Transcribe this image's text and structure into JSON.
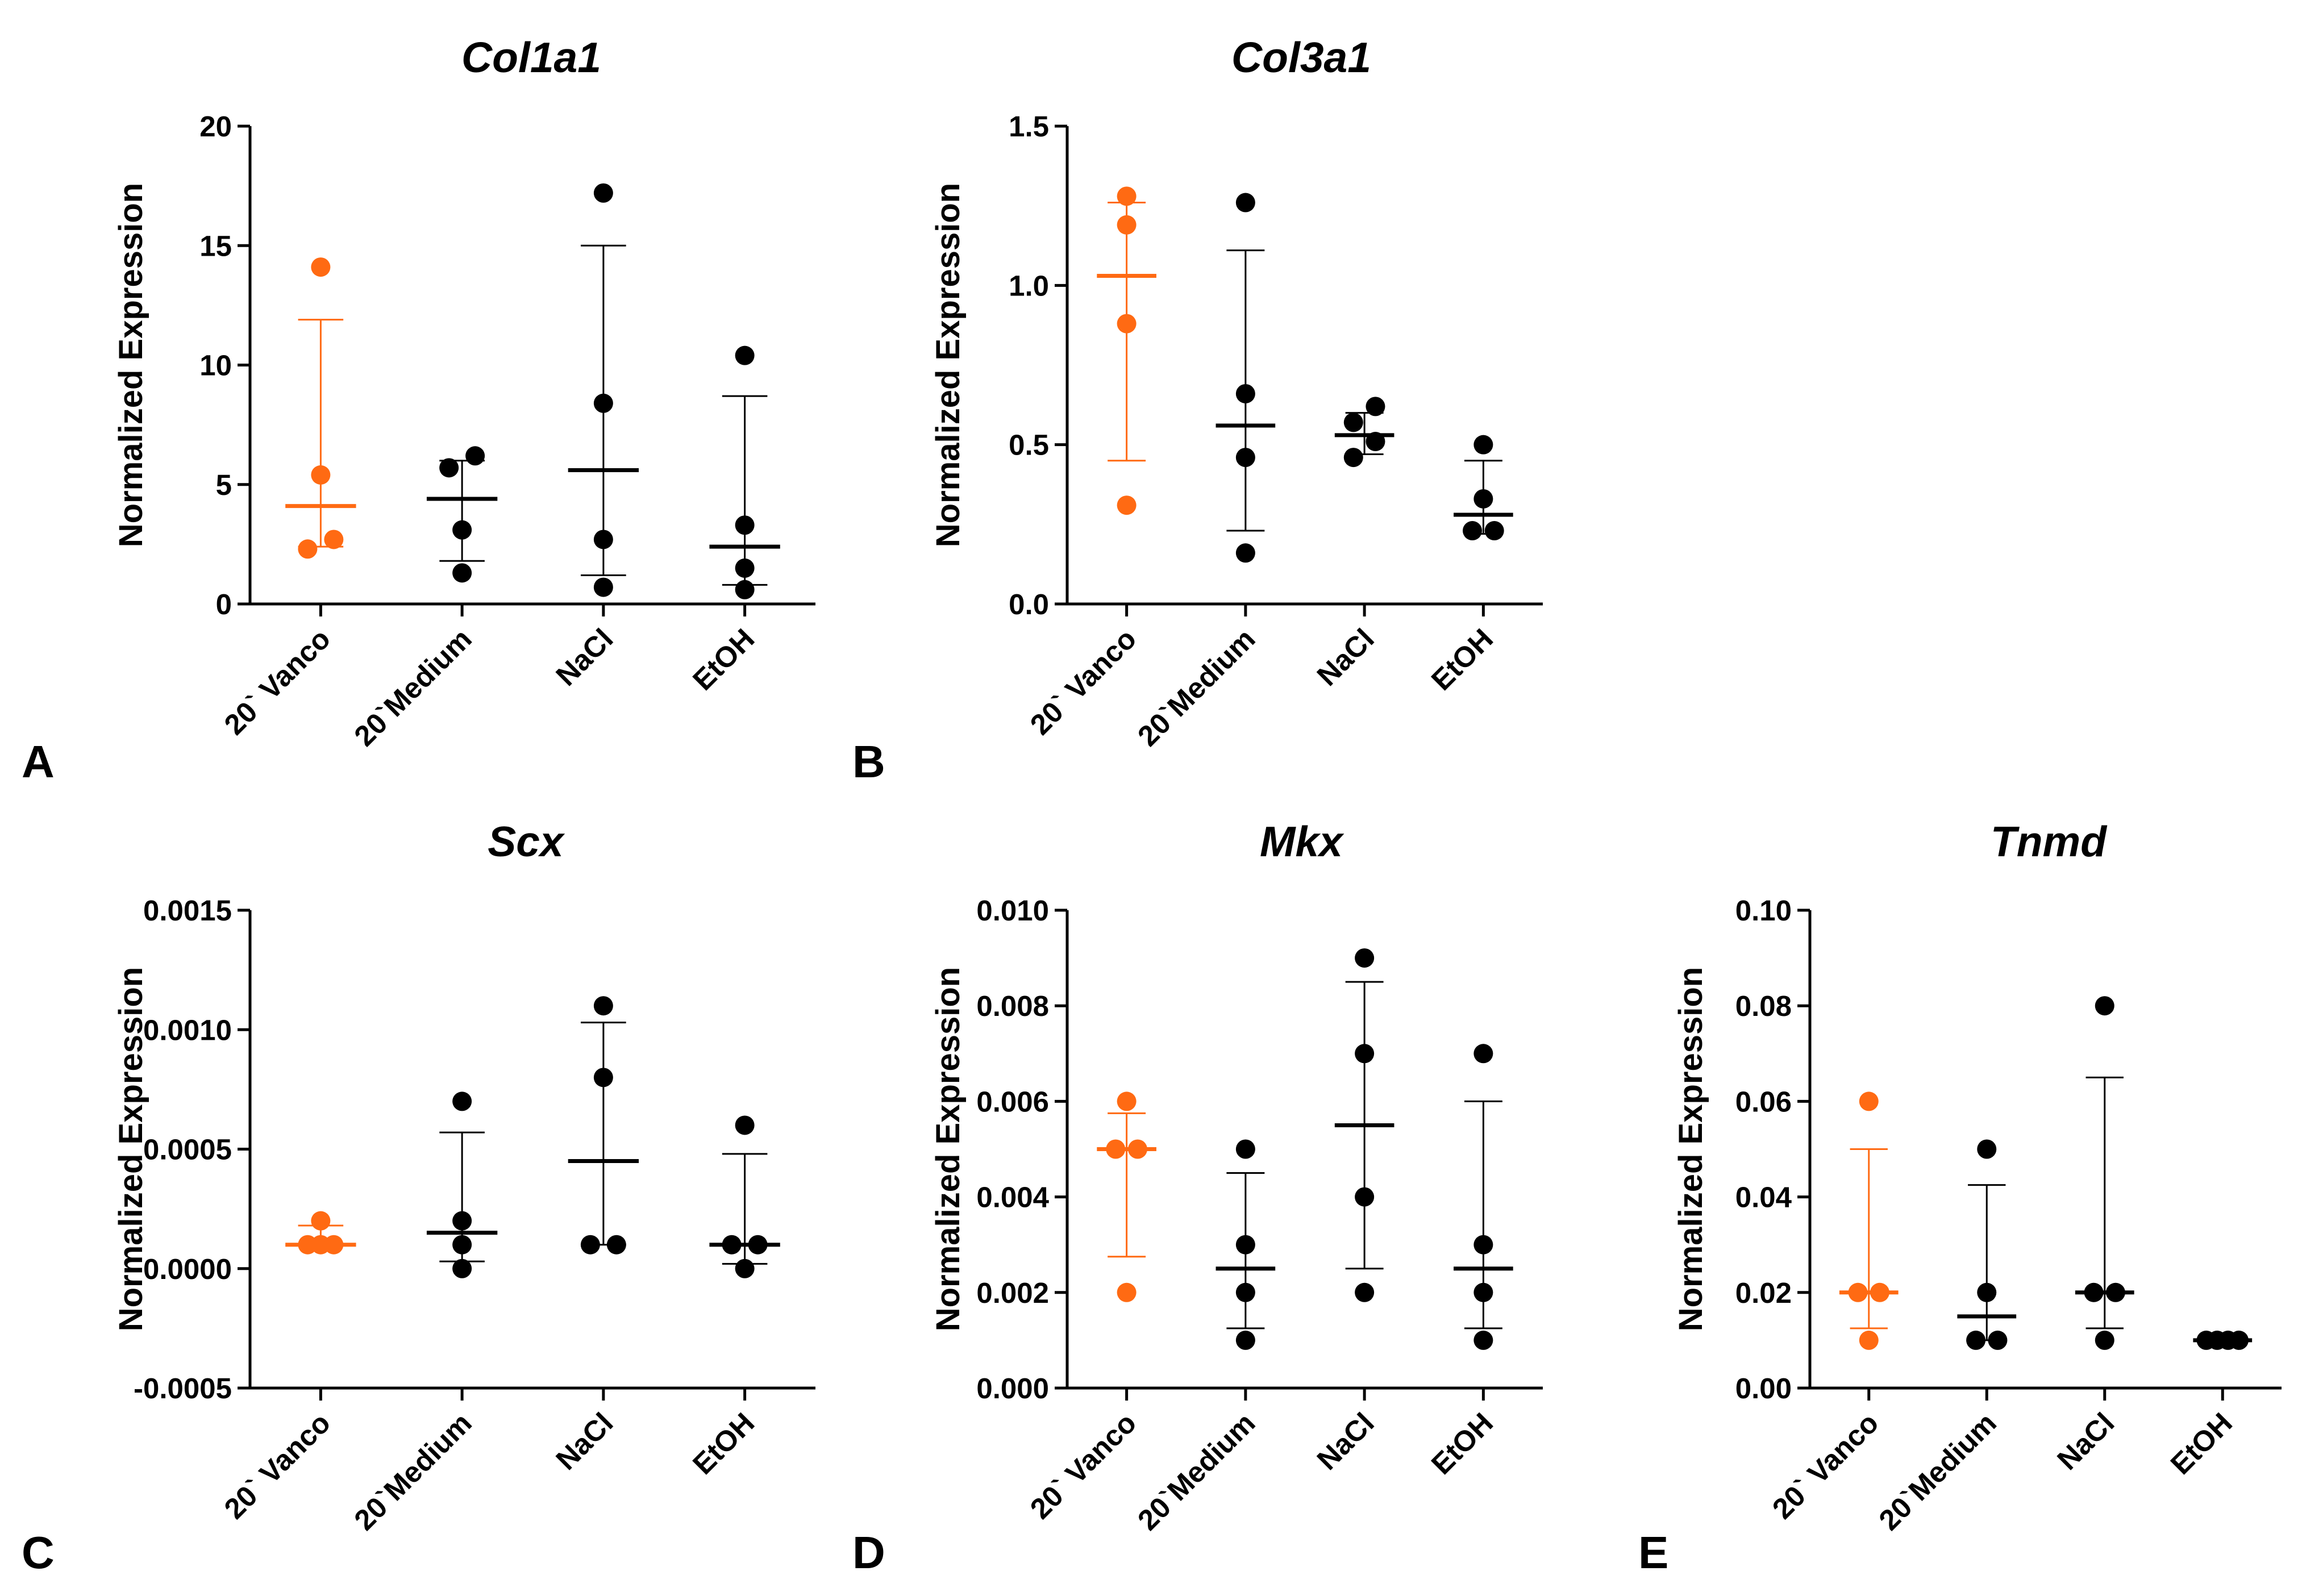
{
  "colors": {
    "highlight": "#ff6a13",
    "default": "#000000"
  },
  "chart_data": [
    {
      "panel": "A",
      "type": "scatter",
      "title": "Col1a1",
      "ylabel": "Normalized Expression",
      "ylim": [
        0,
        20
      ],
      "yticks": [
        "0",
        "5",
        "10",
        "15",
        "20"
      ],
      "ytick_values": [
        0,
        5,
        10,
        15,
        20
      ],
      "categories": [
        "20` Vanco",
        "20`Medium",
        "NaCl",
        "EtOH"
      ],
      "series": [
        {
          "name": "20` Vanco",
          "points": [
            [
              -0.22,
              2.3
            ],
            [
              0.22,
              2.7
            ],
            [
              0,
              5.4
            ],
            [
              0,
              14.1
            ]
          ],
          "median": 4.1,
          "err": [
            2.4,
            11.9
          ]
        },
        {
          "name": "20`Medium",
          "points": [
            [
              0,
              1.3
            ],
            [
              0,
              3.1
            ],
            [
              -0.22,
              5.7
            ],
            [
              0.22,
              6.2
            ]
          ],
          "median": 4.4,
          "err": [
            1.8,
            6.0
          ]
        },
        {
          "name": "NaCl",
          "points": [
            [
              0,
              0.7
            ],
            [
              0,
              2.7
            ],
            [
              0,
              8.4
            ],
            [
              0,
              17.2
            ]
          ],
          "median": 5.6,
          "err": [
            1.2,
            15.0
          ]
        },
        {
          "name": "EtOH",
          "points": [
            [
              0,
              0.6
            ],
            [
              0,
              1.5
            ],
            [
              0,
              3.3
            ],
            [
              0,
              10.4
            ]
          ],
          "median": 2.4,
          "err": [
            0.8,
            8.7
          ]
        }
      ]
    },
    {
      "panel": "B",
      "type": "scatter",
      "title": "Col3a1",
      "ylabel": "Normalized Expression",
      "ylim": [
        0,
        1.5
      ],
      "yticks": [
        "0.0",
        "0.5",
        "1.0",
        "1.5"
      ],
      "ytick_values": [
        0,
        0.5,
        1.0,
        1.5
      ],
      "categories": [
        "20` Vanco",
        "20`Medium",
        "NaCl",
        "EtOH"
      ],
      "series": [
        {
          "name": "20` Vanco",
          "points": [
            [
              0,
              0.31
            ],
            [
              0,
              0.88
            ],
            [
              0,
              1.19
            ],
            [
              0,
              1.28
            ]
          ],
          "median": 1.03,
          "err": [
            0.45,
            1.26
          ]
        },
        {
          "name": "20`Medium",
          "points": [
            [
              0,
              0.16
            ],
            [
              0,
              0.46
            ],
            [
              0,
              0.66
            ],
            [
              0,
              1.26
            ]
          ],
          "median": 0.56,
          "err": [
            0.23,
            1.11
          ]
        },
        {
          "name": "NaCl",
          "points": [
            [
              -0.22,
              0.46
            ],
            [
              0.22,
              0.51
            ],
            [
              -0.22,
              0.57
            ],
            [
              0.22,
              0.62
            ]
          ],
          "median": 0.53,
          "err": [
            0.47,
            0.6
          ]
        },
        {
          "name": "EtOH",
          "points": [
            [
              -0.22,
              0.23
            ],
            [
              0.22,
              0.23
            ],
            [
              0,
              0.33
            ],
            [
              0,
              0.5
            ]
          ],
          "median": 0.28,
          "err": [
            0.22,
            0.45
          ]
        }
      ]
    },
    {
      "panel": "C",
      "type": "scatter",
      "title": "Scx",
      "ylabel": "Normalized Expression",
      "ylim": [
        -0.0005,
        0.0015
      ],
      "yticks": [
        "-0.0005",
        "0.0000",
        "0.0005",
        "0.0010",
        "0.0015"
      ],
      "ytick_values": [
        -0.0005,
        0,
        0.0005,
        0.001,
        0.0015
      ],
      "categories": [
        "20` Vanco",
        "20`Medium",
        "NaCl",
        "EtOH"
      ],
      "series": [
        {
          "name": "20` Vanco",
          "points": [
            [
              -0.22,
              0.0001
            ],
            [
              0,
              0.0001
            ],
            [
              0.22,
              0.0001
            ],
            [
              0,
              0.0002
            ]
          ],
          "median": 0.0001,
          "err": [
            0.0001,
            0.00018
          ]
        },
        {
          "name": "20`Medium",
          "points": [
            [
              0,
              0.0
            ],
            [
              0,
              0.0001
            ],
            [
              0,
              0.0002
            ],
            [
              0,
              0.0007
            ]
          ],
          "median": 0.00015,
          "err": [
            3e-05,
            0.00057
          ]
        },
        {
          "name": "NaCl",
          "points": [
            [
              -0.22,
              0.0001
            ],
            [
              0.22,
              0.0001
            ],
            [
              0,
              0.0008
            ],
            [
              0,
              0.0011
            ]
          ],
          "median": 0.00045,
          "err": [
            0.0001,
            0.00103
          ]
        },
        {
          "name": "EtOH",
          "points": [
            [
              0,
              0.0
            ],
            [
              -0.22,
              0.0001
            ],
            [
              0.22,
              0.0001
            ],
            [
              0,
              0.0006
            ]
          ],
          "median": 0.0001,
          "err": [
            2e-05,
            0.00048
          ]
        }
      ]
    },
    {
      "panel": "D",
      "type": "scatter",
      "title": "Mkx",
      "ylabel": "Normalized Expression",
      "ylim": [
        0,
        0.01
      ],
      "yticks": [
        "0.000",
        "0.002",
        "0.004",
        "0.006",
        "0.008",
        "0.010"
      ],
      "ytick_values": [
        0,
        0.002,
        0.004,
        0.006,
        0.008,
        0.01
      ],
      "categories": [
        "20` Vanco",
        "20`Medium",
        "NaCl",
        "EtOH"
      ],
      "series": [
        {
          "name": "20` Vanco",
          "points": [
            [
              0,
              0.002
            ],
            [
              -0.22,
              0.005
            ],
            [
              0.22,
              0.005
            ],
            [
              0,
              0.006
            ]
          ],
          "median": 0.005,
          "err": [
            0.00275,
            0.00575
          ]
        },
        {
          "name": "20`Medium",
          "points": [
            [
              0,
              0.001
            ],
            [
              0,
              0.002
            ],
            [
              0,
              0.003
            ],
            [
              0,
              0.005
            ]
          ],
          "median": 0.0025,
          "err": [
            0.00125,
            0.0045
          ]
        },
        {
          "name": "NaCl",
          "points": [
            [
              0,
              0.002
            ],
            [
              0,
              0.004
            ],
            [
              0,
              0.007
            ],
            [
              0,
              0.009
            ]
          ],
          "median": 0.0055,
          "err": [
            0.0025,
            0.0085
          ]
        },
        {
          "name": "EtOH",
          "points": [
            [
              0,
              0.001
            ],
            [
              0,
              0.002
            ],
            [
              0,
              0.003
            ],
            [
              0,
              0.007
            ]
          ],
          "median": 0.0025,
          "err": [
            0.00125,
            0.006
          ]
        }
      ]
    },
    {
      "panel": "E",
      "type": "scatter",
      "title": "Tnmd",
      "ylabel": "Normalized Expression",
      "ylim": [
        0,
        0.1
      ],
      "yticks": [
        "0.00",
        "0.02",
        "0.04",
        "0.06",
        "0.08",
        "0.10"
      ],
      "ytick_values": [
        0,
        0.02,
        0.04,
        0.06,
        0.08,
        0.1
      ],
      "categories": [
        "20` Vanco",
        "20`Medium",
        "NaCl",
        "EtOH"
      ],
      "series": [
        {
          "name": "20` Vanco",
          "points": [
            [
              0,
              0.01
            ],
            [
              -0.22,
              0.02
            ],
            [
              0.22,
              0.02
            ],
            [
              0,
              0.06
            ]
          ],
          "median": 0.02,
          "err": [
            0.0125,
            0.05
          ]
        },
        {
          "name": "20`Medium",
          "points": [
            [
              -0.22,
              0.01
            ],
            [
              0.22,
              0.01
            ],
            [
              0,
              0.02
            ],
            [
              0,
              0.05
            ]
          ],
          "median": 0.015,
          "err": [
            0.01,
            0.0425
          ]
        },
        {
          "name": "NaCl",
          "points": [
            [
              0,
              0.01
            ],
            [
              -0.22,
              0.02
            ],
            [
              0.22,
              0.02
            ],
            [
              0,
              0.08
            ]
          ],
          "median": 0.02,
          "err": [
            0.0125,
            0.065
          ]
        },
        {
          "name": "EtOH",
          "points": [
            [
              -0.33,
              0.01
            ],
            [
              -0.11,
              0.01
            ],
            [
              0.11,
              0.01
            ],
            [
              0.33,
              0.01
            ]
          ],
          "median": 0.01,
          "err": [
            0.01,
            0.01
          ]
        }
      ]
    }
  ]
}
